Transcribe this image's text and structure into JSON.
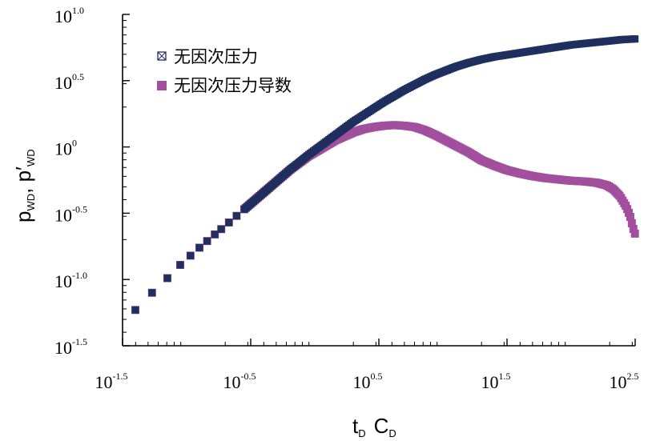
{
  "chart_data": {
    "type": "scatter",
    "scale": {
      "x": "log10",
      "y": "log10"
    },
    "xlim_log10": [
      -1.5,
      2.5
    ],
    "ylim_log10": [
      -1.5,
      1.0
    ],
    "xticks": [
      {
        "base": "10",
        "exp": "-1.5"
      },
      {
        "base": "10",
        "exp": "-0.5"
      },
      {
        "base": "10",
        "exp": "0.5"
      },
      {
        "base": "10",
        "exp": "1.5"
      },
      {
        "base": "10",
        "exp": "2.5"
      }
    ],
    "xtick_values_log10": [
      -1.5,
      -0.5,
      0.5,
      1.5,
      2.5
    ],
    "yticks": [
      {
        "base": "10",
        "exp": "1.0"
      },
      {
        "base": "10",
        "exp": "0.5"
      },
      {
        "base": "10",
        "exp": "0"
      },
      {
        "base": "10",
        "exp": "-0.5"
      },
      {
        "base": "10",
        "exp": "-1.0"
      },
      {
        "base": "10",
        "exp": "-1.5"
      }
    ],
    "ytick_values_log10": [
      1.0,
      0.5,
      0.0,
      -0.5,
      -1.0,
      -1.5
    ],
    "xlabel": {
      "main1": "t",
      "sub1": "D",
      "main2": "C",
      "sub2": "D"
    },
    "ylabel": {
      "main1": "p",
      "sub1": "WD",
      "sep": ", ",
      "main2": "p′",
      "sub2": "WD"
    },
    "legend": {
      "position": "top-left"
    },
    "series": [
      {
        "name": "无因次压力",
        "color": "#1f2f5e",
        "marker": "square-x",
        "x_log10": [
          -1.4,
          -1.27,
          -1.15,
          -1.05,
          -0.97,
          -0.9,
          -0.84,
          -0.78,
          -0.73,
          -0.67,
          -0.61,
          -0.55,
          -0.49,
          -0.43,
          -0.37,
          -0.31,
          -0.25,
          -0.19,
          -0.12,
          -0.05,
          0.02,
          0.09,
          0.16,
          0.23,
          0.3,
          0.38,
          0.46,
          0.54,
          0.62,
          0.7,
          0.78,
          0.86,
          0.94,
          1.02,
          1.1,
          1.2,
          1.3,
          1.4,
          1.5,
          1.6,
          1.7,
          1.8,
          1.9,
          2.0,
          2.1,
          2.2,
          2.3,
          2.4,
          2.5
        ],
        "y_log10": [
          -1.23,
          -1.1,
          -0.99,
          -0.89,
          -0.82,
          -0.76,
          -0.71,
          -0.66,
          -0.62,
          -0.57,
          -0.52,
          -0.47,
          -0.42,
          -0.37,
          -0.32,
          -0.27,
          -0.22,
          -0.17,
          -0.115,
          -0.06,
          -0.01,
          0.04,
          0.09,
          0.14,
          0.19,
          0.24,
          0.29,
          0.34,
          0.385,
          0.43,
          0.47,
          0.51,
          0.545,
          0.575,
          0.605,
          0.635,
          0.66,
          0.68,
          0.695,
          0.71,
          0.725,
          0.74,
          0.755,
          0.77,
          0.78,
          0.79,
          0.8,
          0.81,
          0.815
        ]
      },
      {
        "name": "无因次压力导数",
        "color": "#a24f9e",
        "marker": "square",
        "x_log10": [
          -1.4,
          -1.27,
          -1.15,
          -1.05,
          -0.97,
          -0.9,
          -0.84,
          -0.78,
          -0.73,
          -0.67,
          -0.61,
          -0.55,
          -0.49,
          -0.43,
          -0.37,
          -0.31,
          -0.25,
          -0.19,
          -0.12,
          -0.05,
          0.02,
          0.09,
          0.16,
          0.23,
          0.3,
          0.38,
          0.46,
          0.54,
          0.62,
          0.7,
          0.78,
          0.86,
          0.94,
          1.02,
          1.1,
          1.2,
          1.3,
          1.4,
          1.5,
          1.6,
          1.7,
          1.8,
          1.9,
          2.0,
          2.1,
          2.2,
          2.28,
          2.33,
          2.38,
          2.43,
          2.46,
          2.48,
          2.5
        ],
        "y_log10": [
          -1.23,
          -1.1,
          -0.99,
          -0.89,
          -0.82,
          -0.76,
          -0.71,
          -0.66,
          -0.62,
          -0.57,
          -0.52,
          -0.47,
          -0.42,
          -0.37,
          -0.32,
          -0.27,
          -0.22,
          -0.17,
          -0.12,
          -0.07,
          -0.03,
          0.01,
          0.05,
          0.08,
          0.11,
          0.135,
          0.15,
          0.16,
          0.165,
          0.16,
          0.15,
          0.125,
          0.09,
          0.05,
          0.01,
          -0.04,
          -0.1,
          -0.14,
          -0.175,
          -0.2,
          -0.22,
          -0.235,
          -0.245,
          -0.255,
          -0.26,
          -0.27,
          -0.29,
          -0.32,
          -0.37,
          -0.45,
          -0.52,
          -0.6,
          -0.66
        ]
      }
    ]
  }
}
